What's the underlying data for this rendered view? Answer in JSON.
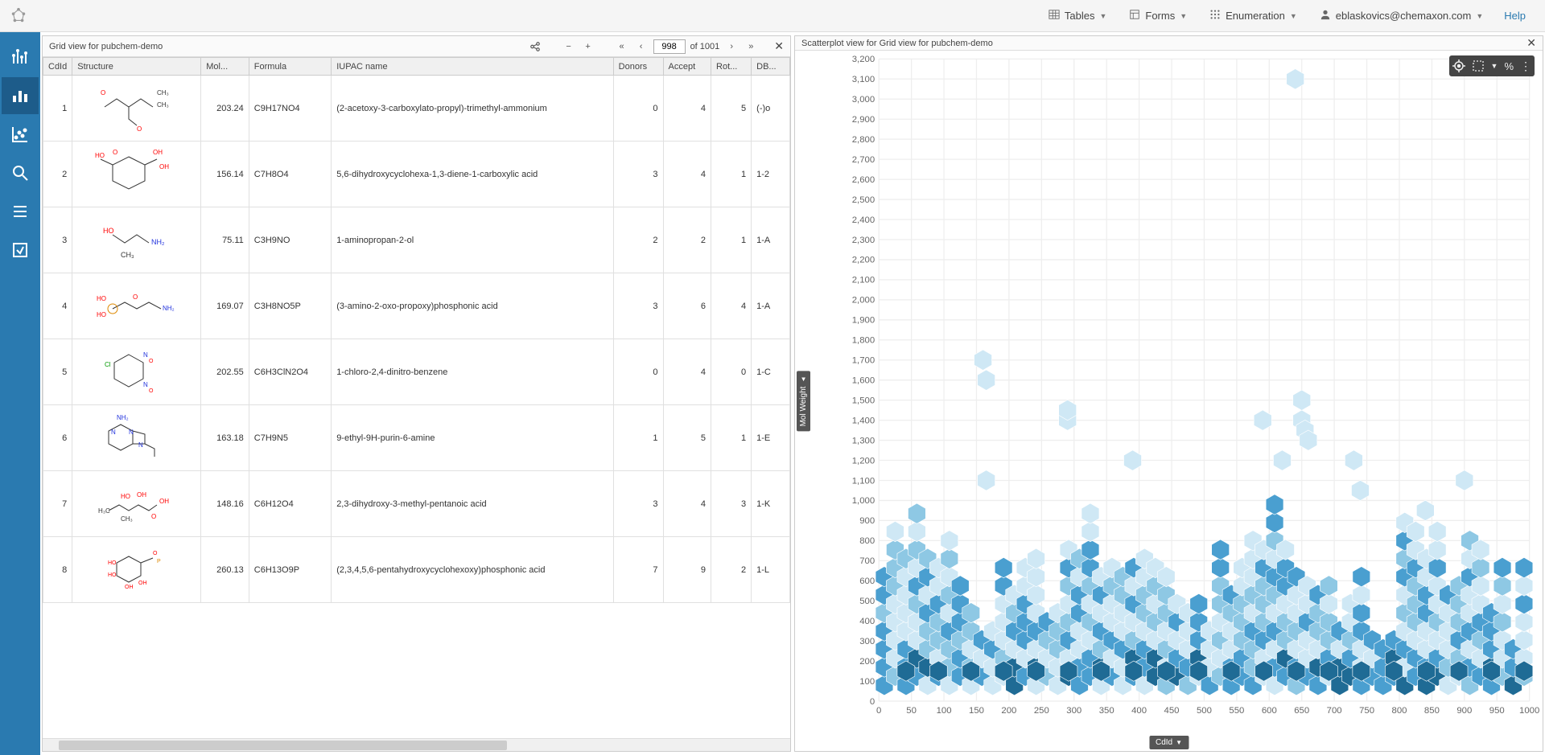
{
  "topbar": {
    "menus": {
      "tables": "Tables",
      "forms": "Forms",
      "enumeration": "Enumeration",
      "user": "eblaskovics@chemaxon.com"
    },
    "help": "Help"
  },
  "grid_panel": {
    "title": "Grid view for pubchem-demo",
    "page_current": "998",
    "page_total_label": "of 1001",
    "columns": [
      "CdId",
      "Structure",
      "Mol...",
      "Formula",
      "IUPAC name",
      "Donors",
      "Accept",
      "Rot...",
      "DB..."
    ],
    "rows": [
      {
        "cdid": 1,
        "mw": "203.24",
        "formula": "C9H17NO4",
        "iupac": "(2-acetoxy-3-carboxylato-propyl)-trimethyl-ammonium",
        "donors": 0,
        "accept": 4,
        "rot": 5,
        "db": "(-)o"
      },
      {
        "cdid": 2,
        "mw": "156.14",
        "formula": "C7H8O4",
        "iupac": "5,6-dihydroxycyclohexa-1,3-diene-1-carboxylic acid",
        "donors": 3,
        "accept": 4,
        "rot": 1,
        "db": "1-2"
      },
      {
        "cdid": 3,
        "mw": "75.11",
        "formula": "C3H9NO",
        "iupac": "1-aminopropan-2-ol",
        "donors": 2,
        "accept": 2,
        "rot": 1,
        "db": "1-A"
      },
      {
        "cdid": 4,
        "mw": "169.07",
        "formula": "C3H8NO5P",
        "iupac": "(3-amino-2-oxo-propoxy)phosphonic acid",
        "donors": 3,
        "accept": 6,
        "rot": 4,
        "db": "1-A"
      },
      {
        "cdid": 5,
        "mw": "202.55",
        "formula": "C6H3ClN2O4",
        "iupac": "1-chloro-2,4-dinitro-benzene",
        "donors": 0,
        "accept": 4,
        "rot": 0,
        "db": "1-C"
      },
      {
        "cdid": 6,
        "mw": "163.18",
        "formula": "C7H9N5",
        "iupac": "9-ethyl-9H-purin-6-amine",
        "donors": 1,
        "accept": 5,
        "rot": 1,
        "db": "1-E"
      },
      {
        "cdid": 7,
        "mw": "148.16",
        "formula": "C6H12O4",
        "iupac": "2,3-dihydroxy-3-methyl-pentanoic acid",
        "donors": 3,
        "accept": 4,
        "rot": 3,
        "db": "1-K"
      },
      {
        "cdid": 8,
        "mw": "260.13",
        "formula": "C6H13O9P",
        "iupac": "(2,3,4,5,6-pentahydroxycyclohexoxy)phosphonic acid",
        "donors": 7,
        "accept": 9,
        "rot": 2,
        "db": "1-L"
      }
    ]
  },
  "scatter_panel": {
    "title": "Scatterplot view for Grid view for pubchem-demo",
    "y_label": "Mol Weight",
    "x_label": "CdId",
    "y_ticks": [
      0,
      100,
      200,
      300,
      400,
      500,
      600,
      700,
      800,
      900,
      1000,
      1100,
      1200,
      1300,
      1400,
      1500,
      1600,
      1700,
      1800,
      1900,
      2000,
      2100,
      2200,
      2300,
      2400,
      2500,
      2600,
      2700,
      2800,
      2900,
      3000,
      3100,
      3200
    ],
    "x_ticks": [
      0,
      50,
      100,
      150,
      200,
      250,
      300,
      350,
      400,
      450,
      500,
      550,
      600,
      650,
      700,
      750,
      800,
      850,
      900,
      950,
      1000
    ],
    "y_max": 3200,
    "x_max": 1000,
    "hexbin_colors": {
      "low": "#cfe8f5",
      "mid": "#8ec8e4",
      "high": "#4a9fd0",
      "max": "#1f6b95"
    },
    "hex_size": 10,
    "outliers": [
      {
        "x": 640,
        "y": 3100
      },
      {
        "x": 160,
        "y": 1700
      },
      {
        "x": 165,
        "y": 1600
      },
      {
        "x": 290,
        "y": 1400
      },
      {
        "x": 590,
        "y": 1400
      },
      {
        "x": 290,
        "y": 1450
      },
      {
        "x": 650,
        "y": 1400
      },
      {
        "x": 655,
        "y": 1350
      },
      {
        "x": 660,
        "y": 1300
      },
      {
        "x": 650,
        "y": 1500
      },
      {
        "x": 620,
        "y": 1200
      },
      {
        "x": 390,
        "y": 1200
      },
      {
        "x": 165,
        "y": 1100
      },
      {
        "x": 730,
        "y": 1200
      },
      {
        "x": 740,
        "y": 1050
      },
      {
        "x": 900,
        "y": 1100
      },
      {
        "x": 840,
        "y": 950
      }
    ],
    "dense_band": {
      "y_low": 80,
      "y_high": 750,
      "cols": 60
    }
  }
}
